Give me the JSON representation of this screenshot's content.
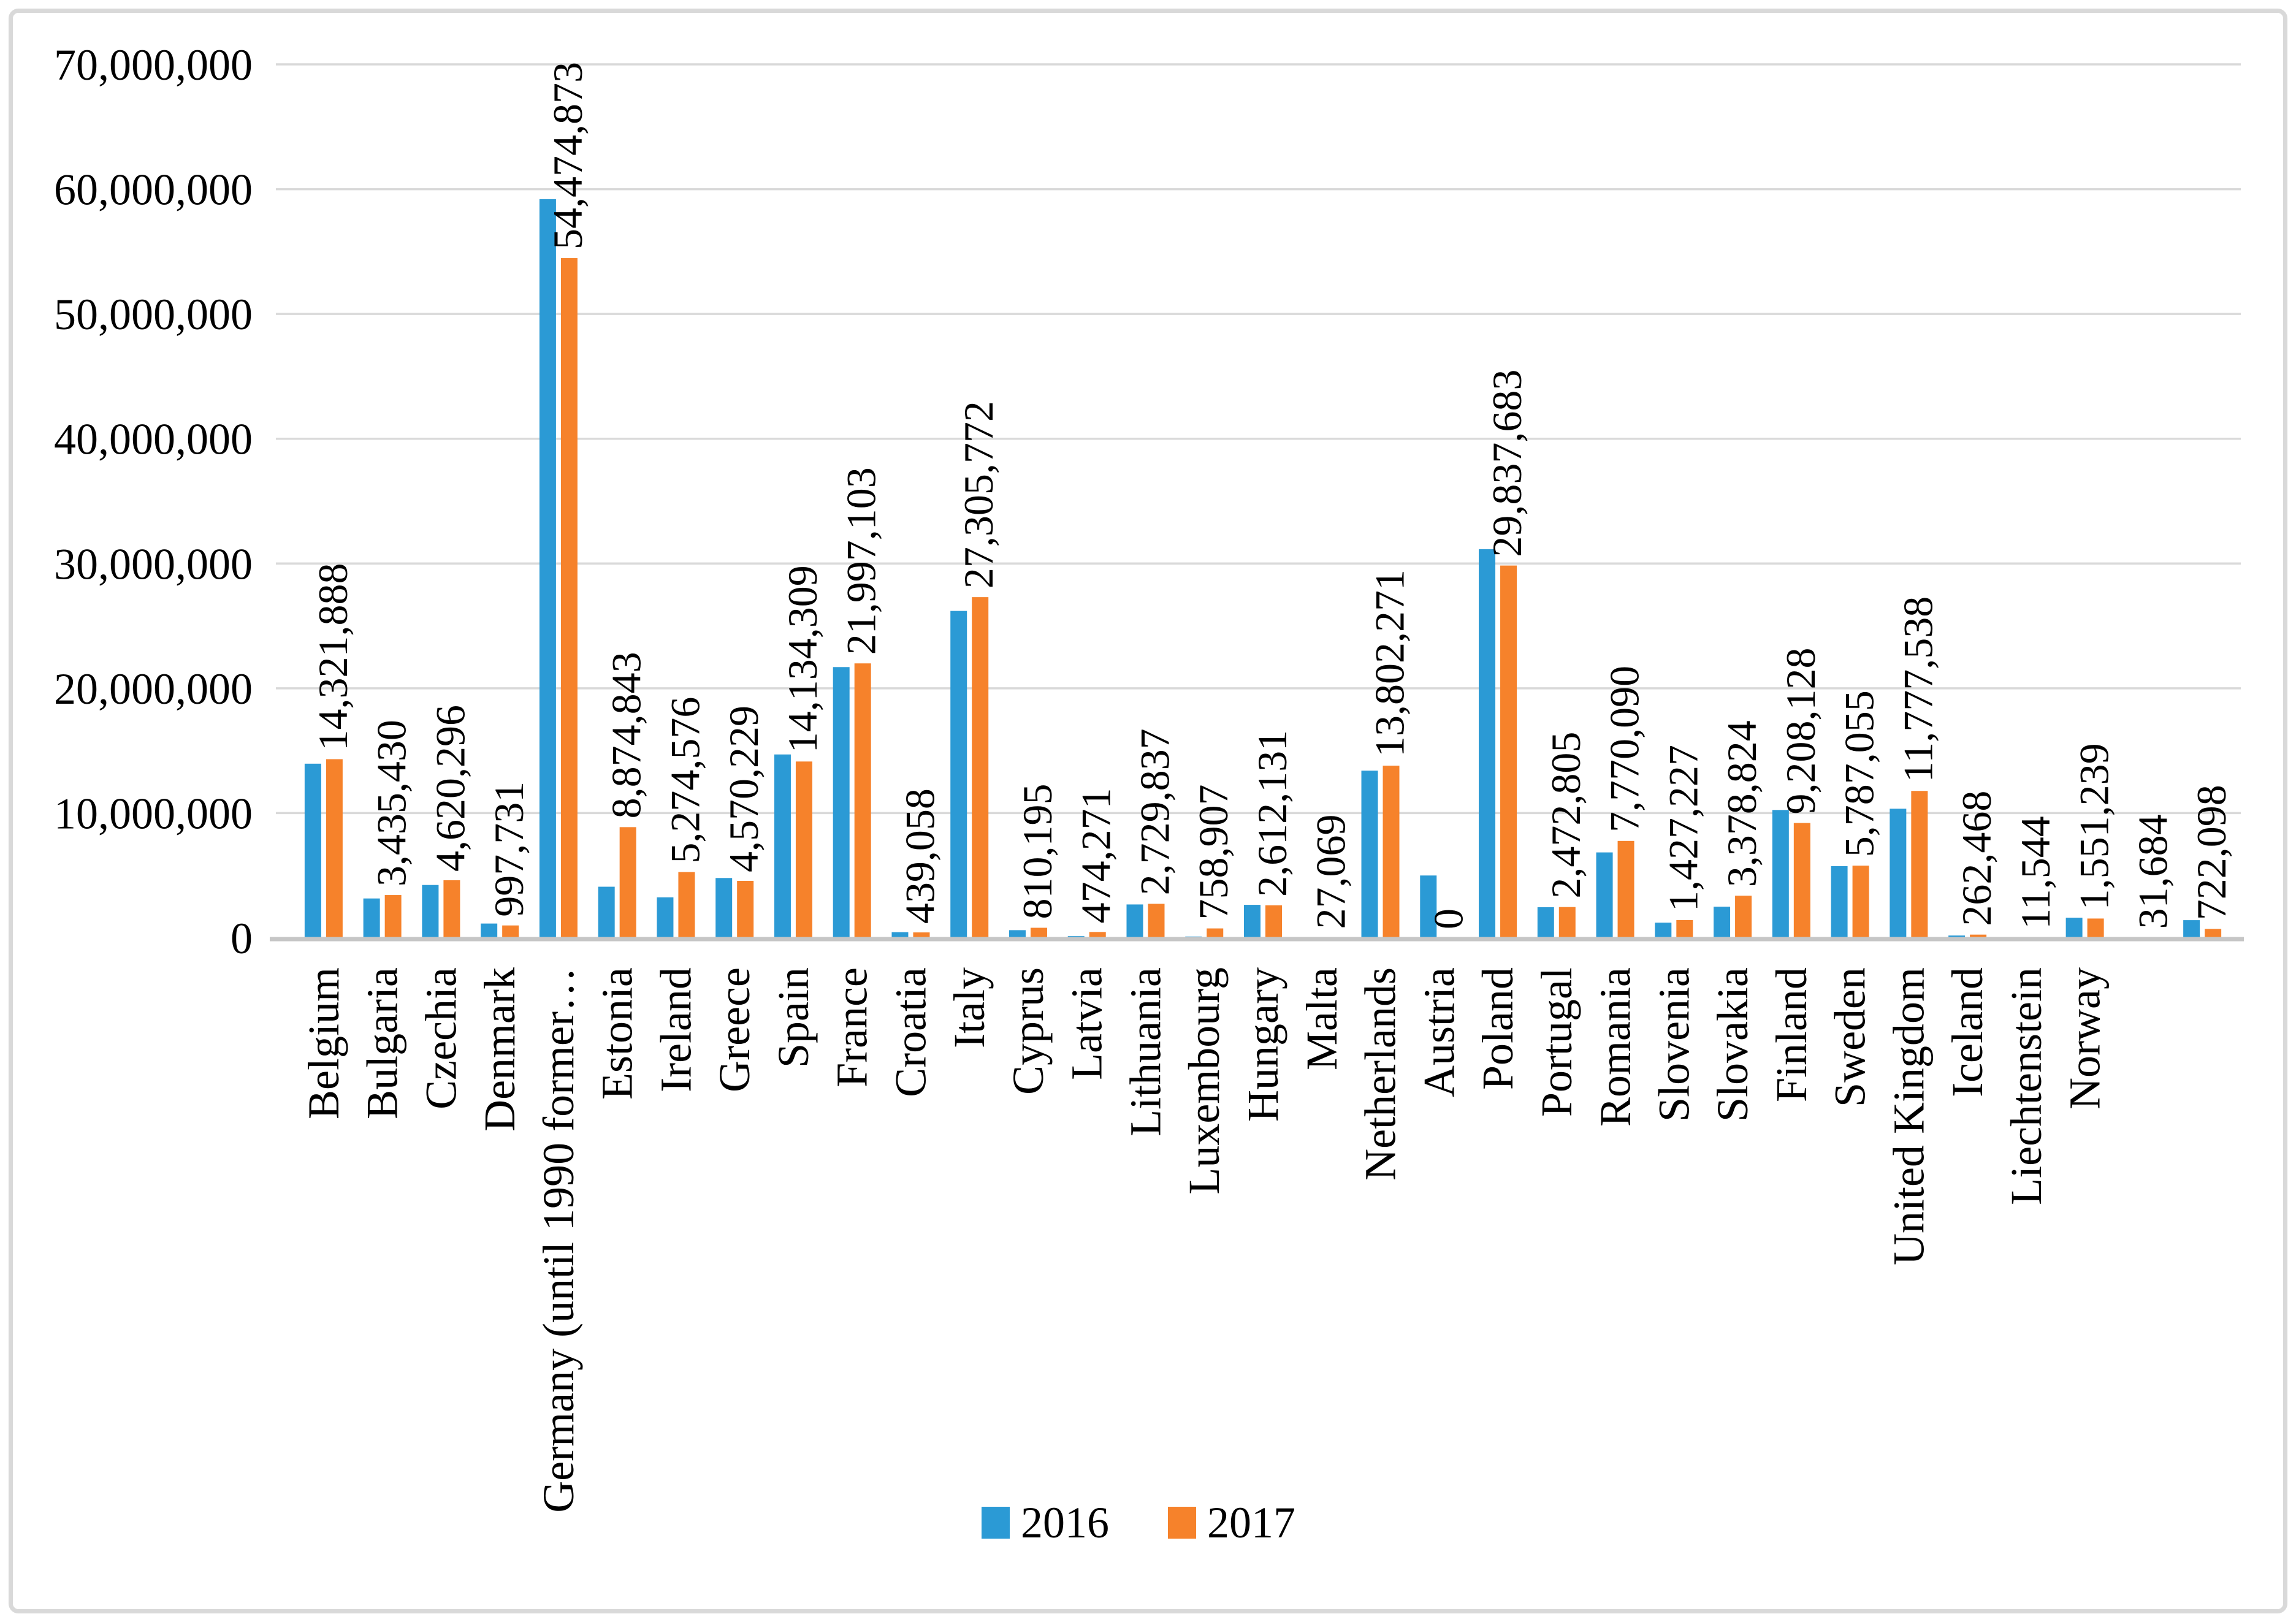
{
  "frame": {
    "background": "#FFFFFF",
    "border_color": "#D9D9D9"
  },
  "chart_data": {
    "type": "bar",
    "title": "",
    "xlabel": "",
    "ylabel": "",
    "ylim": [
      0,
      70000000
    ],
    "ytick_step": 10000000,
    "ytick_labels": [
      "0",
      "10,000,000",
      "20,000,000",
      "30,000,000",
      "40,000,000",
      "50,000,000",
      "60,000,000",
      "70,000,000"
    ],
    "grid": true,
    "gridline_color": "#D9D9D9",
    "axis_line_color": "#C6C6C6",
    "legend_position": "bottom-center",
    "data_labels_series": "2017",
    "data_labels_rotation": -90,
    "category_labels_rotation": -90,
    "note": "last two bar groups have no visible country name on the axis",
    "categories": [
      "Belgium",
      "Bulgaria",
      "Czechia",
      "Denmark",
      "Germany (until 1990 former…",
      "Estonia",
      "Ireland",
      "Greece",
      "Spain",
      "France",
      "Croatia",
      "Italy",
      "Cyprus",
      "Latvia",
      "Lithuania",
      "Luxembourg",
      "Hungary",
      "Malta",
      "Netherlands",
      "Austria",
      "Poland",
      "Portugal",
      "Romania",
      "Slovenia",
      "Slovakia",
      "Finland",
      "Sweden",
      "United Kingdom",
      "Iceland",
      "Liechtenstein",
      "Norway",
      "",
      ""
    ],
    "series": [
      {
        "name": "2016",
        "color": "#2B9AD5",
        "values_estimated_from_bars": true,
        "values": [
          13960000,
          3160000,
          4240000,
          1150000,
          59200000,
          4100000,
          3250000,
          4800000,
          14700000,
          21700000,
          460000,
          26200000,
          620000,
          140000,
          2680000,
          110000,
          2650000,
          25000,
          13400000,
          5000000,
          31150000,
          2460000,
          6850000,
          1220000,
          2500000,
          10250000,
          5750000,
          10350000,
          190000,
          10000,
          1620000,
          30000,
          1420000
        ]
      },
      {
        "name": "2017",
        "color": "#F6822B",
        "has_data_labels": true,
        "values": [
          14321888,
          3435430,
          4620296,
          997731,
          54474873,
          8874843,
          5274576,
          4570229,
          14134309,
          21997103,
          439058,
          27305772,
          810195,
          474271,
          2729837,
          758907,
          2612131,
          27069,
          13802271,
          0,
          29837683,
          2472805,
          7770090,
          1427227,
          3378824,
          9208128,
          5787055,
          11777538,
          262468,
          11544,
          1551239,
          31684,
          722098
        ]
      }
    ],
    "data_label_strings": [
      "14,321,888",
      "3,435,430",
      "4,620,296",
      "997,731",
      "54,474,873",
      "8,874,843",
      "5,274,576",
      "4,570,229",
      "14,134,309",
      "21,997,103",
      "439,058",
      "27,305,772",
      "810,195",
      "474,271",
      "2,729,837",
      "758,907",
      "2,612,131",
      "27,069",
      "13,802,271",
      "0",
      "29,837,683",
      "2,472,805",
      "7,770,090",
      "1,427,227",
      "3,378,824",
      "9,208,128",
      "5,787,055",
      "11,777,538",
      "262,468",
      "11,544",
      "1,551,239",
      "31,684",
      "722,098"
    ],
    "legend": {
      "items": [
        {
          "label": "2016",
          "color": "#2B9AD5"
        },
        {
          "label": "2017",
          "color": "#F6822B"
        }
      ]
    }
  }
}
